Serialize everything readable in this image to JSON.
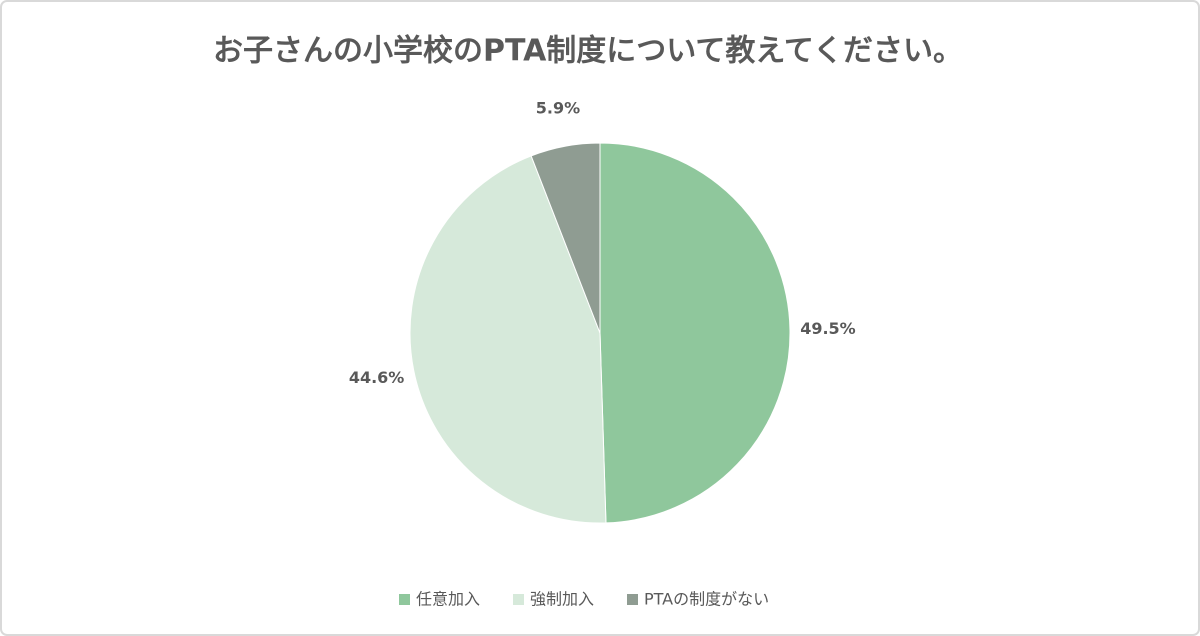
{
  "chart_data": {
    "type": "pie",
    "title": "お子さんの小学校のPTA制度について教えてください。",
    "categories": [
      "任意加入",
      "強制加入",
      "PTAの制度がない"
    ],
    "values": [
      49.5,
      44.6,
      5.9
    ],
    "value_labels": [
      "49.5%",
      "44.6%",
      "5.9%"
    ],
    "colors": [
      "#8fc79c",
      "#d6e9da",
      "#8f9c92"
    ],
    "legend": "bottom"
  }
}
